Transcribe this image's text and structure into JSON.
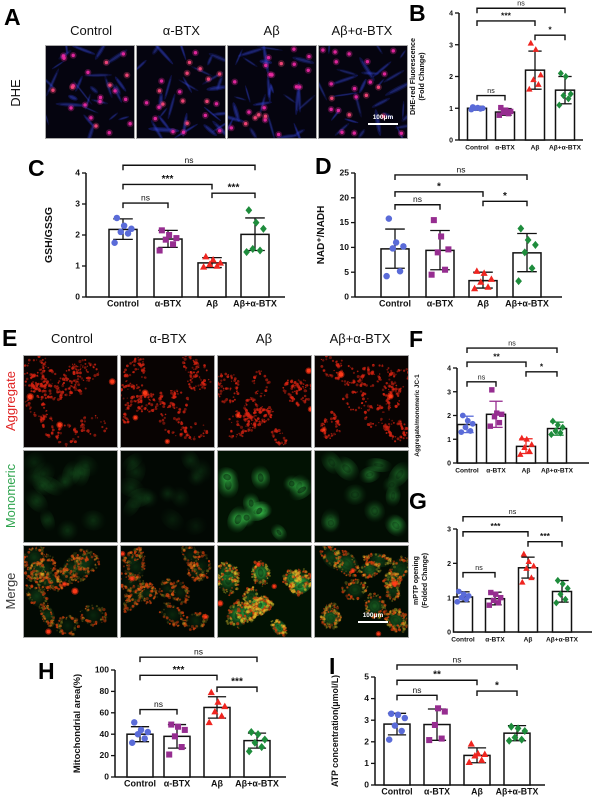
{
  "conditions": [
    "Control",
    "α-BTX",
    "Aβ",
    "Aβ+α-BTX"
  ],
  "panels": {
    "a": {
      "letter": "A",
      "row_label": "DHE",
      "columns": [
        "Control",
        "α-BTX",
        "Aβ",
        "Aβ+α-BTX"
      ],
      "scale_bar": "100μm"
    },
    "b": {
      "letter": "B"
    },
    "c": {
      "letter": "C"
    },
    "d": {
      "letter": "D"
    },
    "e": {
      "letter": "E",
      "columns": [
        "Control",
        "α-BTX",
        "Aβ",
        "Aβ+α-BTX"
      ],
      "rows": [
        {
          "label": "Aggregate",
          "color": "#e02525"
        },
        {
          "label": "Monomeric",
          "color": "#2ea44e"
        },
        {
          "label": "Merge",
          "color": "#3a3a3a"
        }
      ],
      "monomeric_levels": [
        0.3,
        0.2,
        1.0,
        0.6
      ],
      "scale_bar": "100μm"
    },
    "f": {
      "letter": "F"
    },
    "g": {
      "letter": "G"
    },
    "h": {
      "letter": "H"
    },
    "i": {
      "letter": "I"
    }
  },
  "colors": {
    "control": "#5a6bd8",
    "btx": "#962d90",
    "abeta": "#ef2520",
    "combo": "#1e8c3c",
    "axis": "#111111"
  },
  "chart_data": [
    {
      "id": "B",
      "type": "bar",
      "title": "",
      "ylabel_lines": [
        "DHE-red Fluorescence",
        "(Fold Change)"
      ],
      "ylim": [
        0,
        4
      ],
      "yticks": [
        0,
        1,
        2,
        3,
        4
      ],
      "categories": [
        "Control",
        "α-BTX",
        "Aβ",
        "Aβ+α-BTX"
      ],
      "err_color": "black",
      "series": [
        {
          "name": "Control",
          "marker": "circle",
          "color": "#5a6bd8",
          "bar": 1.0,
          "err": [
            0.94,
            1.06
          ],
          "points": [
            0.96,
            0.98,
            1.0,
            1.0,
            1.02,
            1.04
          ]
        },
        {
          "name": "α-BTX",
          "marker": "square",
          "color": "#962d90",
          "bar": 0.88,
          "err": [
            0.78,
            0.99
          ],
          "points": [
            0.78,
            0.83,
            0.87,
            0.9,
            0.94,
            1.02
          ]
        },
        {
          "name": "Aβ",
          "marker": "triangle",
          "color": "#ef2520",
          "bar": 2.2,
          "err": [
            1.6,
            2.8
          ],
          "points": [
            1.6,
            1.75,
            1.9,
            2.05,
            2.85,
            3.05
          ]
        },
        {
          "name": "Aβ+α-BTX",
          "marker": "diamond",
          "color": "#1e8c3c",
          "bar": 1.57,
          "err": [
            1.14,
            2.0
          ],
          "points": [
            1.1,
            1.3,
            1.4,
            1.45,
            2.0,
            2.1
          ]
        }
      ],
      "sig": [
        {
          "a": 0,
          "b": 1,
          "label": "ns",
          "y": 1.4
        },
        {
          "a": 0,
          "b": 2,
          "label": "***",
          "y": 3.75
        },
        {
          "a": 2,
          "b": 3,
          "label": "*",
          "y": 3.3
        },
        {
          "a": 0,
          "b": 3,
          "label": "ns",
          "y": 4.15
        }
      ]
    },
    {
      "id": "C",
      "type": "bar",
      "title": "",
      "ylabel_lines": [
        "GSH/GSSG"
      ],
      "ylim": [
        0,
        4
      ],
      "yticks": [
        0,
        1,
        2,
        3,
        4
      ],
      "categories": [
        "Control",
        "α-BTX",
        "Aβ",
        "Aβ+α-BTX"
      ],
      "err_color": "black",
      "series": [
        {
          "name": "Control",
          "marker": "circle",
          "color": "#5a6bd8",
          "bar": 2.18,
          "err": [
            1.86,
            2.52
          ],
          "points": [
            1.75,
            2.05,
            2.1,
            2.2,
            2.3,
            2.55
          ]
        },
        {
          "name": "α-BTX",
          "marker": "square",
          "color": "#962d90",
          "bar": 1.87,
          "err": [
            1.6,
            2.15
          ],
          "points": [
            1.5,
            1.7,
            1.85,
            1.9,
            2.0,
            2.15
          ]
        },
        {
          "name": "Aβ",
          "marker": "triangle",
          "color": "#ef2520",
          "bar": 1.1,
          "err": [
            0.95,
            1.27
          ],
          "points": [
            0.97,
            1.0,
            1.05,
            1.1,
            1.2,
            1.3
          ]
        },
        {
          "name": "Aβ+α-BTX",
          "marker": "diamond",
          "color": "#1e8c3c",
          "bar": 2.02,
          "err": [
            1.5,
            2.55
          ],
          "points": [
            1.45,
            1.5,
            1.55,
            2.2,
            2.4,
            2.8
          ]
        }
      ],
      "sig": [
        {
          "a": 0,
          "b": 1,
          "label": "ns",
          "y": 3.03
        },
        {
          "a": 0,
          "b": 2,
          "label": "***",
          "y": 3.63
        },
        {
          "a": 2,
          "b": 3,
          "label": "***",
          "y": 3.35
        },
        {
          "a": 0,
          "b": 3,
          "label": "ns",
          "y": 4.25
        }
      ]
    },
    {
      "id": "D",
      "type": "bar",
      "title": "",
      "ylabel_lines": [
        "NAD⁺/NADH"
      ],
      "ylim": [
        0,
        25
      ],
      "yticks": [
        0,
        5,
        10,
        15,
        20,
        25
      ],
      "categories": [
        "Control",
        "α-BTX",
        "Aβ",
        "Aβ+α-BTX"
      ],
      "err_color": "black",
      "series": [
        {
          "name": "Control",
          "marker": "circle",
          "color": "#5a6bd8",
          "bar": 9.7,
          "err": [
            5.8,
            13.7
          ],
          "points": [
            4.2,
            5.2,
            9.8,
            10.2,
            11.0,
            15.8
          ]
        },
        {
          "name": "α-BTX",
          "marker": "square",
          "color": "#962d90",
          "bar": 9.4,
          "err": [
            5.5,
            13.4
          ],
          "points": [
            4.5,
            5.5,
            9.0,
            9.6,
            12.2,
            15.5
          ]
        },
        {
          "name": "Aβ",
          "marker": "triangle",
          "color": "#ef2520",
          "bar": 3.3,
          "err": [
            1.8,
            5.0
          ],
          "points": [
            1.7,
            2.0,
            3.0,
            3.6,
            4.8,
            5.2
          ]
        },
        {
          "name": "Aβ+α-BTX",
          "marker": "diamond",
          "color": "#1e8c3c",
          "bar": 8.9,
          "err": [
            5.1,
            12.8
          ],
          "points": [
            3.2,
            5.8,
            9.0,
            10.5,
            11.5,
            13.8
          ]
        }
      ],
      "sig": [
        {
          "a": 0,
          "b": 1,
          "label": "ns",
          "y": 18.6
        },
        {
          "a": 0,
          "b": 2,
          "label": "*",
          "y": 21.2
        },
        {
          "a": 2,
          "b": 3,
          "label": "*",
          "y": 19.3
        },
        {
          "a": 0,
          "b": 3,
          "label": "ns",
          "y": 24.6
        }
      ]
    },
    {
      "id": "F",
      "type": "bar",
      "title": "",
      "ylabel_lines": [
        "Aggregate/monomeric JC-1"
      ],
      "ylim": [
        0,
        4
      ],
      "yticks": [
        0,
        1,
        2,
        3,
        4
      ],
      "categories": [
        "Control",
        "α-BTX",
        "Aβ",
        "Aβ+α-BTX"
      ],
      "err_color": "series",
      "series": [
        {
          "name": "Control",
          "marker": "circle",
          "color": "#5a6bd8",
          "bar": 1.62,
          "err": [
            1.28,
            1.97
          ],
          "points": [
            1.3,
            1.35,
            1.5,
            1.65,
            1.78,
            2.0
          ]
        },
        {
          "name": "α-BTX",
          "marker": "square",
          "color": "#962d90",
          "bar": 2.05,
          "err": [
            1.5,
            2.6
          ],
          "points": [
            1.55,
            1.7,
            1.95,
            2.05,
            2.1,
            3.08
          ]
        },
        {
          "name": "Aβ",
          "marker": "triangle",
          "color": "#ef2520",
          "bar": 0.7,
          "err": [
            0.4,
            1.02
          ],
          "points": [
            0.36,
            0.5,
            0.65,
            0.78,
            1.0,
            1.05
          ]
        },
        {
          "name": "Aβ+α-BTX",
          "marker": "diamond",
          "color": "#1e8c3c",
          "bar": 1.45,
          "err": [
            1.17,
            1.72
          ],
          "points": [
            1.2,
            1.27,
            1.35,
            1.5,
            1.6,
            1.76
          ]
        }
      ],
      "sig": [
        {
          "a": 0,
          "b": 1,
          "label": "ns",
          "y": 3.42
        },
        {
          "a": 0,
          "b": 2,
          "label": "**",
          "y": 4.25
        },
        {
          "a": 2,
          "b": 3,
          "label": "*",
          "y": 3.84
        },
        {
          "a": 0,
          "b": 3,
          "label": "ns",
          "y": 4.84
        }
      ]
    },
    {
      "id": "G",
      "type": "bar",
      "title": "",
      "ylabel_lines": [
        "mPTP opening",
        "(Folded Change)"
      ],
      "ylim": [
        0,
        3
      ],
      "yticks": [
        0,
        1,
        2,
        3
      ],
      "categories": [
        "Control",
        "α-BTX",
        "Aβ",
        "Aβ+α-BTX"
      ],
      "err_color": "black",
      "series": [
        {
          "name": "Control",
          "marker": "circle",
          "color": "#5a6bd8",
          "bar": 1.02,
          "err": [
            0.88,
            1.17
          ],
          "points": [
            0.88,
            0.95,
            1.0,
            1.05,
            1.1,
            1.18
          ]
        },
        {
          "name": "α-BTX",
          "marker": "square",
          "color": "#962d90",
          "bar": 0.97,
          "err": [
            0.79,
            1.16
          ],
          "points": [
            0.78,
            0.85,
            0.92,
            1.0,
            1.1,
            1.15
          ]
        },
        {
          "name": "Aβ",
          "marker": "triangle",
          "color": "#ef2520",
          "bar": 1.87,
          "err": [
            1.57,
            2.18
          ],
          "points": [
            1.45,
            1.58,
            1.85,
            1.92,
            2.05,
            2.27
          ]
        },
        {
          "name": "Aβ+α-BTX",
          "marker": "diamond",
          "color": "#1e8c3c",
          "bar": 1.18,
          "err": [
            0.87,
            1.5
          ],
          "points": [
            0.85,
            0.95,
            1.1,
            1.27,
            1.4,
            1.5
          ]
        }
      ],
      "sig": [
        {
          "a": 0,
          "b": 1,
          "label": "ns",
          "y": 1.73
        },
        {
          "a": 0,
          "b": 2,
          "label": "***",
          "y": 2.92
        },
        {
          "a": 2,
          "b": 3,
          "label": "***",
          "y": 2.63
        },
        {
          "a": 0,
          "b": 3,
          "label": "ns",
          "y": 3.36
        }
      ]
    },
    {
      "id": "H",
      "type": "bar",
      "title": "",
      "ylabel_lines": [
        "Mitochondrial area(%)"
      ],
      "ylim": [
        0,
        100
      ],
      "yticks": [
        0,
        20,
        40,
        60,
        80,
        100
      ],
      "categories": [
        "Control",
        "α-BTX",
        "Aβ",
        "Aβ+α-BTX"
      ],
      "err_color": "black",
      "series": [
        {
          "name": "Control",
          "marker": "circle",
          "color": "#5a6bd8",
          "bar": 40,
          "err": [
            33,
            47
          ],
          "points": [
            32,
            36,
            40,
            42,
            44,
            51
          ]
        },
        {
          "name": "α-BTX",
          "marker": "square",
          "color": "#962d90",
          "bar": 38,
          "err": [
            27,
            49
          ],
          "points": [
            21,
            28,
            38,
            44,
            47,
            49
          ]
        },
        {
          "name": "Aβ",
          "marker": "triangle",
          "color": "#ef2520",
          "bar": 65,
          "err": [
            55,
            75
          ],
          "points": [
            51,
            57,
            61,
            66,
            70,
            79
          ]
        },
        {
          "name": "Aβ+α-BTX",
          "marker": "diamond",
          "color": "#1e8c3c",
          "bar": 34,
          "err": [
            27,
            41
          ],
          "points": [
            24,
            28,
            32,
            35,
            40,
            42
          ]
        }
      ],
      "sig": [
        {
          "a": 0,
          "b": 1,
          "label": "ns",
          "y": 63
        },
        {
          "a": 0,
          "b": 2,
          "label": "***",
          "y": 95
        },
        {
          "a": 2,
          "b": 3,
          "label": "***",
          "y": 84
        },
        {
          "a": 0,
          "b": 3,
          "label": "ns",
          "y": 112
        }
      ]
    },
    {
      "id": "I",
      "type": "bar",
      "title": "",
      "ylabel_lines": [
        "ATP concentration(μmol/L)"
      ],
      "ylim": [
        0,
        5
      ],
      "yticks": [
        0,
        1,
        2,
        3,
        4,
        5
      ],
      "categories": [
        "Control",
        "α-BTX",
        "Aβ",
        "Aβ+α-BTX"
      ],
      "err_color": "black",
      "series": [
        {
          "name": "Control",
          "marker": "circle",
          "color": "#5a6bd8",
          "bar": 2.82,
          "err": [
            2.32,
            3.32
          ],
          "points": [
            2.1,
            2.5,
            2.75,
            3.1,
            3.25,
            3.3
          ]
        },
        {
          "name": "α-BTX",
          "marker": "square",
          "color": "#962d90",
          "bar": 2.8,
          "err": [
            2.07,
            3.52
          ],
          "points": [
            2.08,
            2.15,
            2.78,
            3.4,
            3.55
          ]
        },
        {
          "name": "Aβ",
          "marker": "triangle",
          "color": "#ef2520",
          "bar": 1.37,
          "err": [
            1.03,
            1.72
          ],
          "points": [
            1.05,
            1.15,
            1.35,
            1.42,
            1.45,
            1.9
          ]
        },
        {
          "name": "Aβ+α-BTX",
          "marker": "diamond",
          "color": "#1e8c3c",
          "bar": 2.4,
          "err": [
            2.05,
            2.75
          ],
          "points": [
            2.05,
            2.1,
            2.2,
            2.5,
            2.62,
            2.7
          ]
        }
      ],
      "sig": [
        {
          "a": 0,
          "b": 1,
          "label": "ns",
          "y": 4.15
        },
        {
          "a": 0,
          "b": 2,
          "label": "**",
          "y": 4.85
        },
        {
          "a": 2,
          "b": 3,
          "label": "*",
          "y": 4.35
        },
        {
          "a": 0,
          "b": 3,
          "label": "ns",
          "y": 5.56
        }
      ]
    }
  ]
}
